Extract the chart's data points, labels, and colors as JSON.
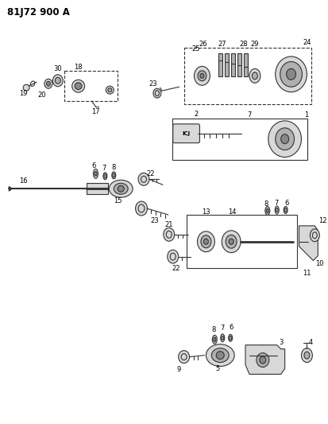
{
  "title": "81J72 900 A",
  "bg_color": "#ffffff",
  "line_color": "#333333",
  "fig_width": 4.13,
  "fig_height": 5.33,
  "dpi": 100,
  "gray_light": "#d8d8d8",
  "gray_mid": "#b0b0b0",
  "gray_dark": "#888888"
}
